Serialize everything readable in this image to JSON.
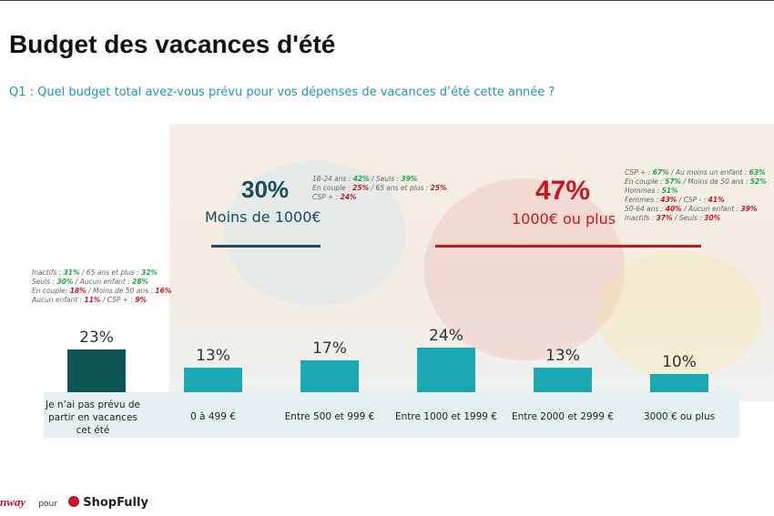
{
  "header": {
    "title": "Budget des vacances d'été",
    "subtitle": "Q1 : Quel budget total avez-vous prévu pour vos dépenses de vacances d’été cette année ?"
  },
  "chart_data": {
    "type": "bar",
    "categories": [
      "Je n’ai pas prévu de partir en vacances cet été",
      "0 à 499 €",
      "Entre 500 et 999 €",
      "Entre 1000 et 1999 €",
      "Entre 2000 et 2999 €",
      "3000 € ou plus"
    ],
    "values": [
      23,
      13,
      17,
      24,
      13,
      10
    ],
    "value_labels": [
      "23%",
      "13%",
      "17%",
      "24%",
      "13%",
      "10%"
    ],
    "colors": [
      "#0f5658",
      "#1aa9b3",
      "#1aa9b3",
      "#1aa9b3",
      "#1aa9b3",
      "#1aa9b3"
    ]
  },
  "summaries": [
    {
      "value": "30%",
      "label": "Moins de 1000€",
      "color": "#1d4b5c"
    },
    {
      "value": "47%",
      "label": "1000€ ou plus",
      "color": "#d0141e"
    }
  ],
  "notes": [
    {
      "lines": [
        [
          {
            "text": "Inactifs : "
          },
          {
            "text": "31%",
            "color": "#1fa84a"
          },
          {
            "text": " / 65 ans et plus : "
          },
          {
            "text": "32%",
            "color": "#1fa84a"
          }
        ],
        [
          {
            "text": "Seuls : "
          },
          {
            "text": "30%",
            "color": "#1fa84a"
          },
          {
            "text": " / Aucun enfant : "
          },
          {
            "text": "28%",
            "color": "#1fa84a"
          }
        ],
        [
          {
            "text": "En couple: "
          },
          {
            "text": "18%",
            "color": "#d0141e"
          },
          {
            "text": " / Moins de 50 ans : "
          },
          {
            "text": "16%",
            "color": "#d0141e"
          }
        ],
        [
          {
            "text": "Aucun enfant : "
          },
          {
            "text": "11%",
            "color": "#d0141e"
          },
          {
            "text": " / CSP + : "
          },
          {
            "text": "9%",
            "color": "#d0141e"
          }
        ]
      ]
    },
    {
      "lines": [
        [
          {
            "text": "18-24 ans : "
          },
          {
            "text": "42%",
            "color": "#1fa84a"
          },
          {
            "text": " / Seuls : "
          },
          {
            "text": "39%",
            "color": "#1fa84a"
          }
        ],
        [
          {
            "text": "En couple : "
          },
          {
            "text": "25%",
            "color": "#d0141e"
          },
          {
            "text": " / 65 ans et plus : "
          },
          {
            "text": "25%",
            "color": "#d0141e"
          }
        ],
        [
          {
            "text": "CSP + : "
          },
          {
            "text": "24%",
            "color": "#d0141e"
          }
        ]
      ]
    },
    {
      "lines": [
        [
          {
            "text": "CSP + : "
          },
          {
            "text": "67%",
            "color": "#1fa84a"
          },
          {
            "text": " / Au moins un enfant : "
          },
          {
            "text": "63%",
            "color": "#1fa84a"
          }
        ],
        [
          {
            "text": "En couple : "
          },
          {
            "text": "57%",
            "color": "#1fa84a"
          },
          {
            "text": " / Moins de 50 ans : "
          },
          {
            "text": "52%",
            "color": "#1fa84a"
          }
        ],
        [
          {
            "text": "Hommes : "
          },
          {
            "text": "51%",
            "color": "#1fa84a"
          }
        ],
        [
          {
            "text": "Femmes : "
          },
          {
            "text": "43%",
            "color": "#d0141e"
          },
          {
            "text": " / CSP - : "
          },
          {
            "text": "41%",
            "color": "#d0141e"
          }
        ],
        [
          {
            "text": "50-64 ans : "
          },
          {
            "text": "40%",
            "color": "#d0141e"
          },
          {
            "text": " / Aucun enfant : "
          },
          {
            "text": "39%",
            "color": "#d0141e"
          }
        ],
        [
          {
            "text": "Inactifs : "
          },
          {
            "text": "37%",
            "color": "#d0141e"
          },
          {
            "text": " / Seuls : "
          },
          {
            "text": "30%",
            "color": "#d0141e"
          }
        ]
      ]
    }
  ],
  "footer": {
    "brand": "nway",
    "connector": "pour",
    "partner": "ShopFully"
  }
}
